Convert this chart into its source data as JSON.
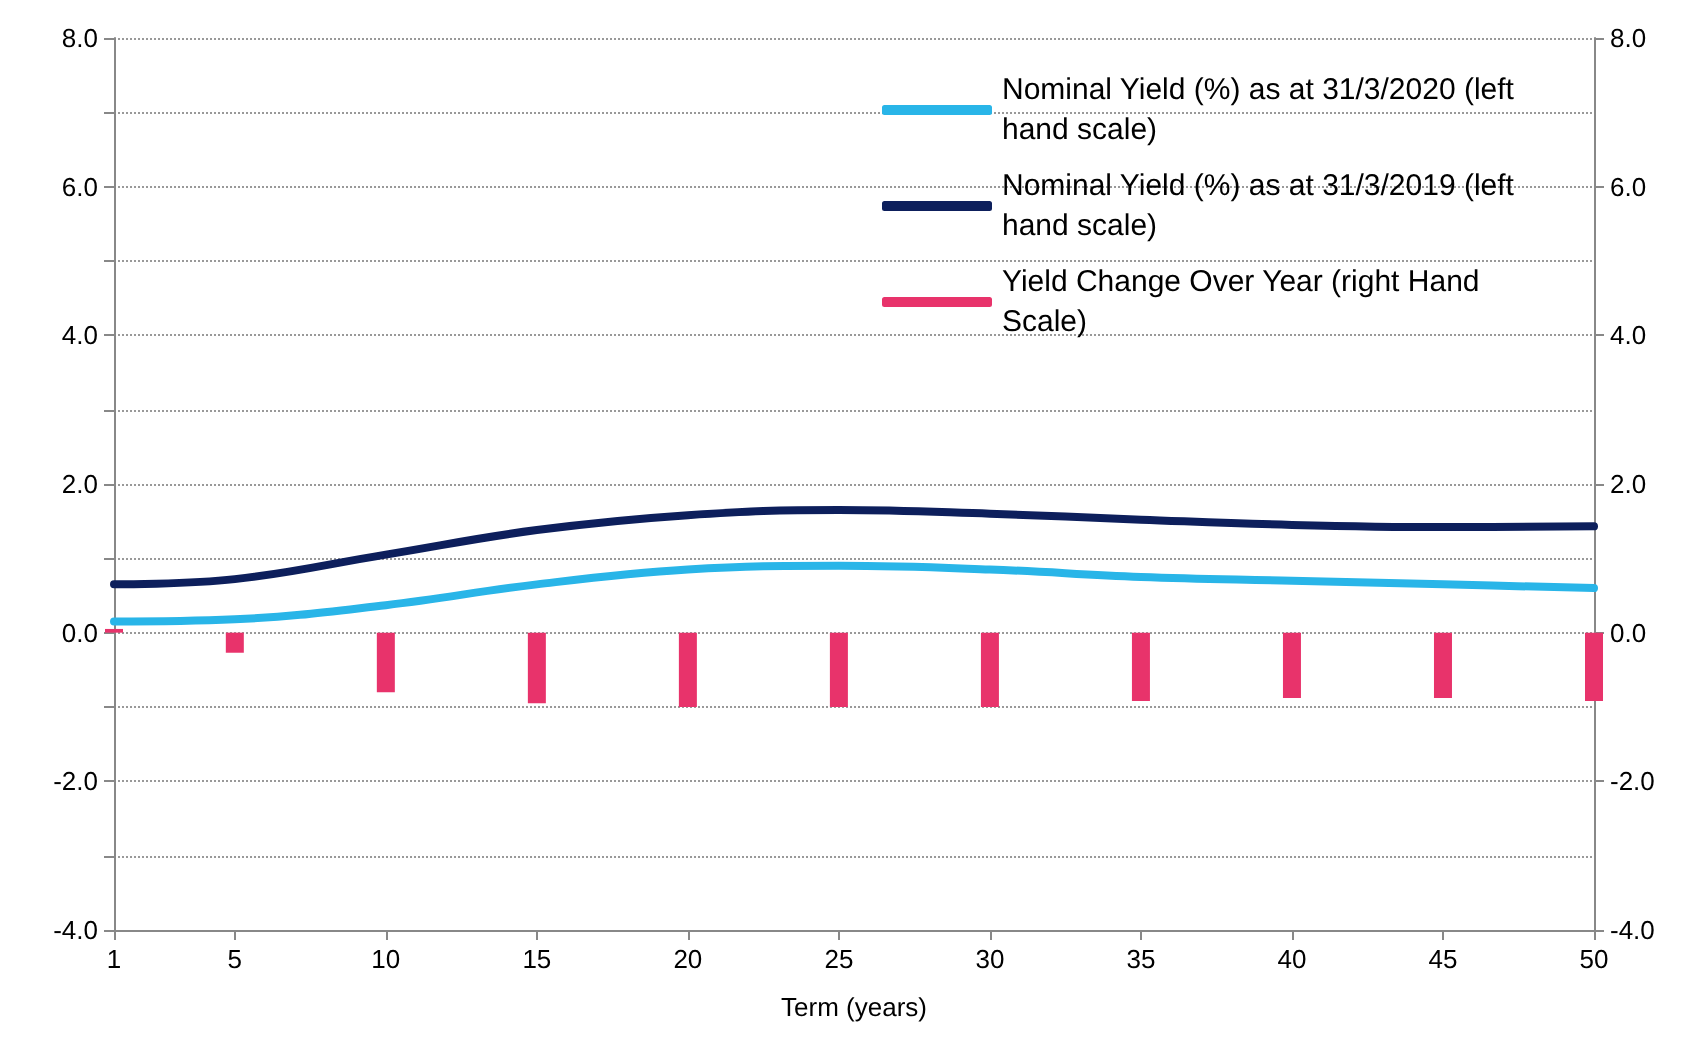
{
  "chart_data": {
    "type": "line",
    "xlabel": "Term (years)",
    "x": [
      1,
      5,
      10,
      15,
      20,
      25,
      30,
      35,
      40,
      45,
      50
    ],
    "xlim": [
      1,
      50
    ],
    "xticks": [
      1,
      5,
      10,
      15,
      20,
      25,
      30,
      35,
      40,
      45,
      50
    ],
    "ylim": [
      -4,
      8
    ],
    "yticks": [
      {
        "value": -4,
        "label": "-4.0"
      },
      {
        "value": -3,
        "label": null
      },
      {
        "value": -2,
        "label": "-2.0"
      },
      {
        "value": -1,
        "label": null
      },
      {
        "value": 0,
        "label": "0.0"
      },
      {
        "value": 1,
        "label": null
      },
      {
        "value": 2,
        "label": "2.0"
      },
      {
        "value": 3,
        "label": null
      },
      {
        "value": 4,
        "label": "4.0"
      },
      {
        "value": 5,
        "label": null
      },
      {
        "value": 6,
        "label": "6.0"
      },
      {
        "value": 7,
        "label": null
      },
      {
        "value": 8,
        "label": "8.0"
      }
    ],
    "y2lim": [
      -4,
      8
    ],
    "y2ticks": [
      {
        "value": -4,
        "label": "-4.0"
      },
      {
        "value": -2,
        "label": "-2.0"
      },
      {
        "value": 0,
        "label": "0.0"
      },
      {
        "value": 2,
        "label": "2.0"
      },
      {
        "value": 4,
        "label": "4.0"
      },
      {
        "value": 6,
        "label": "6.0"
      },
      {
        "value": 8,
        "label": "8.0"
      }
    ],
    "grid": "y",
    "legend": "top right",
    "marker": "none",
    "line_style": "solid",
    "series": [
      {
        "name": "Nominal Yield (%) as at 31/3/2020 (left hand scale)",
        "color": "#29b5e8",
        "values": [
          0.15,
          0.18,
          0.37,
          0.65,
          0.85,
          0.9,
          0.85,
          0.75,
          0.7,
          0.65,
          0.6
        ]
      },
      {
        "name": "Nominal Yield (%) as at 31/3/2019 (left hand scale)",
        "color": "#0d1f5c",
        "values": [
          0.65,
          0.72,
          1.05,
          1.38,
          1.58,
          1.65,
          1.6,
          1.52,
          1.45,
          1.42,
          1.43
        ]
      },
      {
        "name": "Yield Change Over Year (right Hand Scale)",
        "type": "bar",
        "axis": "y2",
        "color": "#e8336b",
        "values": [
          0.05,
          -0.27,
          -0.8,
          -0.95,
          -1.0,
          -1.0,
          -1.0,
          -0.92,
          -0.88,
          -0.88,
          -0.92
        ]
      }
    ]
  }
}
